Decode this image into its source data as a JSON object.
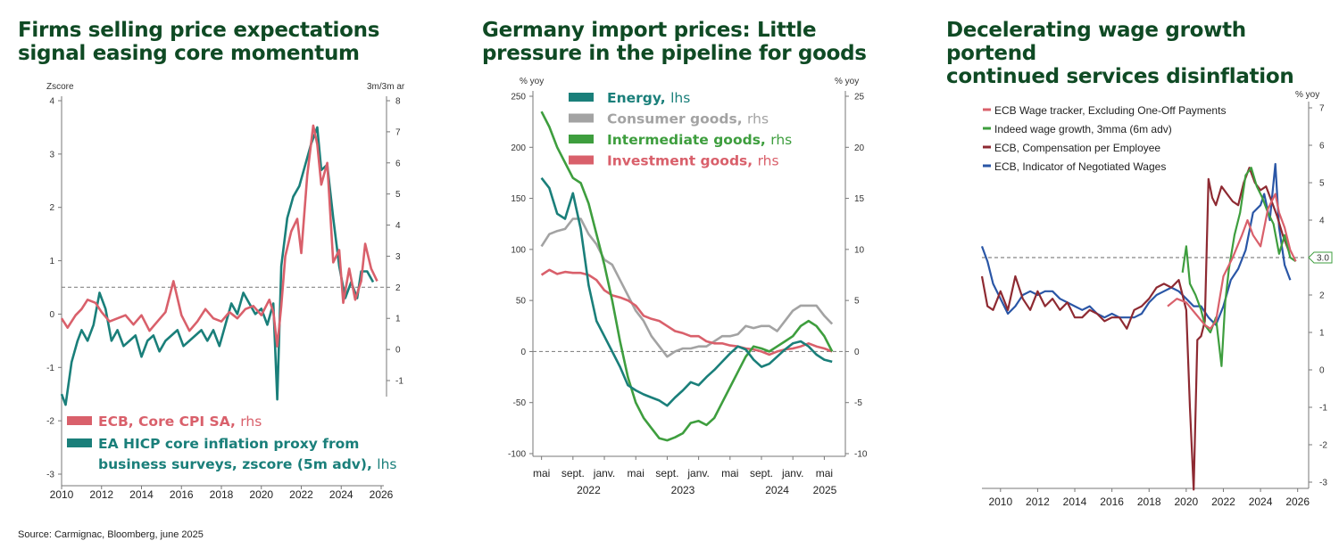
{
  "source": "Source: Carmignac, Bloomberg, june 2025",
  "chart_data": [
    {
      "type": "line",
      "title_lines": [
        "Firms selling price expectations",
        "signal easing core momentum"
      ],
      "ylabel_left": "Zscore",
      "ylabel_right": "3m/3m ar",
      "ylim_left": [
        -3,
        4
      ],
      "ylim_right": [
        -1,
        8
      ],
      "yticks_left": [
        "4",
        "3",
        "2",
        "1",
        "0",
        "-1",
        "-2",
        "-3"
      ],
      "yticks_right": [
        "8",
        "7",
        "6",
        "5",
        "4",
        "3",
        "2",
        "1",
        "0",
        "-1"
      ],
      "xlim": [
        2010,
        2026
      ],
      "xticks": [
        "2010",
        "2012",
        "2014",
        "2016",
        "2018",
        "2020",
        "2022",
        "2024",
        "2026"
      ],
      "reference_line_right": 2,
      "series": [
        {
          "name": "ECB, Core CPI SA,",
          "axis_label": "rhs",
          "color": "#d9606b",
          "axis": "right",
          "x": [
            2010.0,
            2010.3,
            2010.7,
            2011.0,
            2011.3,
            2011.7,
            2012.0,
            2012.4,
            2012.8,
            2013.2,
            2013.6,
            2014.0,
            2014.4,
            2014.8,
            2015.2,
            2015.6,
            2016.0,
            2016.4,
            2016.8,
            2017.2,
            2017.6,
            2018.0,
            2018.4,
            2018.8,
            2019.2,
            2019.6,
            2020.0,
            2020.4,
            2020.6,
            2020.8,
            2021.0,
            2021.2,
            2021.5,
            2021.8,
            2022.0,
            2022.3,
            2022.6,
            2022.8,
            2023.0,
            2023.3,
            2023.6,
            2023.9,
            2024.1,
            2024.4,
            2024.7,
            2025.0,
            2025.2,
            2025.5,
            2025.8
          ],
          "values": [
            1.0,
            0.7,
            1.1,
            1.3,
            1.6,
            1.5,
            1.2,
            0.9,
            1.0,
            1.1,
            0.8,
            1.1,
            0.6,
            0.9,
            1.2,
            2.2,
            1.1,
            0.6,
            0.9,
            1.3,
            1.0,
            0.9,
            1.2,
            1.0,
            1.3,
            1.4,
            1.1,
            1.6,
            1.2,
            0.1,
            1.4,
            3.0,
            3.8,
            4.2,
            3.1,
            5.6,
            7.2,
            6.6,
            5.3,
            6.0,
            2.8,
            3.2,
            1.5,
            2.6,
            1.6,
            2.2,
            3.4,
            2.6,
            2.2
          ]
        },
        {
          "name": "EA HICP core inflation proxy from business surveys, zscore (5m adv),",
          "axis_label": "lhs",
          "color": "#1a7f7a",
          "axis": "left",
          "x": [
            2010.0,
            2010.2,
            2010.5,
            2010.8,
            2011.0,
            2011.3,
            2011.6,
            2011.9,
            2012.2,
            2012.5,
            2012.8,
            2013.1,
            2013.4,
            2013.7,
            2014.0,
            2014.3,
            2014.6,
            2014.9,
            2015.2,
            2015.5,
            2015.8,
            2016.1,
            2016.4,
            2016.7,
            2017.0,
            2017.3,
            2017.6,
            2017.9,
            2018.2,
            2018.5,
            2018.8,
            2019.1,
            2019.4,
            2019.7,
            2020.0,
            2020.3,
            2020.6,
            2020.8,
            2021.0,
            2021.3,
            2021.6,
            2021.9,
            2022.2,
            2022.5,
            2022.8,
            2023.0,
            2023.3,
            2023.6,
            2023.9,
            2024.2,
            2024.5,
            2024.8,
            2025.0,
            2025.3,
            2025.6
          ],
          "values": [
            -1.5,
            -1.7,
            -0.9,
            -0.5,
            -0.3,
            -0.5,
            -0.2,
            0.4,
            0.1,
            -0.5,
            -0.3,
            -0.6,
            -0.5,
            -0.4,
            -0.8,
            -0.5,
            -0.4,
            -0.7,
            -0.5,
            -0.4,
            -0.3,
            -0.6,
            -0.5,
            -0.4,
            -0.3,
            -0.5,
            -0.3,
            -0.6,
            -0.2,
            0.2,
            0.0,
            0.4,
            0.2,
            0.0,
            0.1,
            -0.2,
            0.2,
            -1.6,
            0.9,
            1.8,
            2.2,
            2.4,
            2.8,
            3.2,
            3.5,
            2.7,
            2.8,
            1.8,
            0.9,
            0.3,
            0.6,
            0.3,
            0.8,
            0.8,
            0.6
          ]
        }
      ]
    },
    {
      "type": "line",
      "title_lines": [
        "Germany import prices: Little",
        "pressure in the pipeline for goods"
      ],
      "ylabel_left": "% yoy",
      "ylabel_right": "% yoy",
      "ylim_left": [
        -100,
        250
      ],
      "ylim_right": [
        -10,
        25
      ],
      "yticks_left": [
        "250",
        "200",
        "150",
        "100",
        "50",
        "0",
        "-50",
        "-100"
      ],
      "yticks_right": [
        "25",
        "20",
        "15",
        "10",
        "5",
        "0",
        "-5",
        "-10"
      ],
      "xticks": [
        "mai",
        "sept.",
        "janv.",
        "mai",
        "sept.",
        "janv.",
        "mai",
        "sept.",
        "janv.",
        "mai"
      ],
      "xticks_year": [
        "2022",
        "2023",
        "2024",
        "2025"
      ],
      "x_months": [
        0,
        4,
        8,
        12,
        16,
        20,
        24,
        28,
        32,
        36
      ],
      "reference_line_left": 0,
      "series": [
        {
          "name": "Energy,",
          "axis_label": "lhs",
          "color": "#1a7f7a",
          "axis": "left",
          "months": [
            0,
            1,
            2,
            3,
            4,
            5,
            6,
            7,
            8,
            9,
            10,
            11,
            12,
            13,
            14,
            15,
            16,
            17,
            18,
            19,
            20,
            21,
            22,
            23,
            24,
            25,
            26,
            27,
            28,
            29,
            30,
            31,
            32,
            33,
            34,
            35,
            36,
            37
          ],
          "values": [
            170,
            160,
            135,
            130,
            155,
            120,
            65,
            30,
            15,
            0,
            -15,
            -33,
            -38,
            -42,
            -45,
            -48,
            -53,
            -45,
            -38,
            -30,
            -33,
            -25,
            -18,
            -10,
            -2,
            5,
            2,
            -8,
            -15,
            -12,
            -5,
            2,
            8,
            10,
            5,
            -3,
            -8,
            -10
          ]
        },
        {
          "name": "Consumer goods,",
          "axis_label": "rhs",
          "color": "#a3a3a3",
          "axis": "right",
          "months": [
            0,
            1,
            2,
            3,
            4,
            5,
            6,
            7,
            8,
            9,
            10,
            11,
            12,
            13,
            14,
            15,
            16,
            17,
            18,
            19,
            20,
            21,
            22,
            23,
            24,
            25,
            26,
            27,
            28,
            29,
            30,
            31,
            32,
            33,
            34,
            35,
            36,
            37
          ],
          "values": [
            10.3,
            11.5,
            11.8,
            12.0,
            13.0,
            13.0,
            11.5,
            10.5,
            9.0,
            8.5,
            7.0,
            5.5,
            4.0,
            3.0,
            1.5,
            0.5,
            -0.5,
            0.0,
            0.3,
            0.3,
            0.5,
            0.5,
            1.0,
            1.5,
            1.5,
            1.7,
            2.5,
            2.3,
            2.5,
            2.5,
            2.0,
            3.0,
            4.0,
            4.5,
            4.5,
            4.5,
            3.5,
            2.7
          ]
        },
        {
          "name": "Intermediate goods,",
          "axis_label": "rhs",
          "color": "#3e9e3e",
          "axis": "right",
          "months": [
            0,
            1,
            2,
            3,
            4,
            5,
            6,
            7,
            8,
            9,
            10,
            11,
            12,
            13,
            14,
            15,
            16,
            17,
            18,
            19,
            20,
            21,
            22,
            23,
            24,
            25,
            26,
            27,
            28,
            29,
            30,
            31,
            32,
            33,
            34,
            35,
            36,
            37
          ],
          "values": [
            23.5,
            22.0,
            20.0,
            18.5,
            17.0,
            16.5,
            14.5,
            11.5,
            8.5,
            5.0,
            1.0,
            -2.5,
            -5.0,
            -6.5,
            -7.5,
            -8.5,
            -8.7,
            -8.4,
            -8.0,
            -7.0,
            -6.8,
            -7.2,
            -6.5,
            -5.0,
            -3.5,
            -2.0,
            -0.5,
            0.5,
            0.3,
            0.0,
            0.5,
            1.0,
            1.5,
            2.5,
            3.0,
            2.5,
            1.5,
            0.0
          ]
        },
        {
          "name": "Investment goods,",
          "axis_label": "rhs",
          "color": "#d9606b",
          "axis": "right",
          "months": [
            0,
            1,
            2,
            3,
            4,
            5,
            6,
            7,
            8,
            9,
            10,
            11,
            12,
            13,
            14,
            15,
            16,
            17,
            18,
            19,
            20,
            21,
            22,
            23,
            24,
            25,
            26,
            27,
            28,
            29,
            30,
            31,
            32,
            33,
            34,
            35,
            36,
            37
          ],
          "values": [
            7.5,
            8.0,
            7.6,
            7.8,
            7.7,
            7.7,
            7.5,
            7.0,
            6.0,
            5.5,
            5.3,
            5.0,
            4.5,
            3.5,
            3.2,
            3.0,
            2.5,
            2.0,
            1.8,
            1.5,
            1.5,
            1.0,
            0.8,
            0.8,
            0.6,
            0.5,
            0.3,
            0.2,
            0.0,
            -0.3,
            0.0,
            0.2,
            0.3,
            0.5,
            0.8,
            0.5,
            0.3,
            0.0
          ]
        }
      ]
    },
    {
      "type": "line",
      "title_lines": [
        "Decelerating wage growth portend",
        "continued services disinflation"
      ],
      "ylabel_right": "% yoy",
      "ylim_right": [
        -3,
        7
      ],
      "yticks_right": [
        "7",
        "6",
        "5",
        "4",
        "3",
        "2",
        "1",
        "0",
        "-1",
        "-2",
        "-3"
      ],
      "xlim": [
        2009,
        2026.4
      ],
      "xticks": [
        "2010",
        "2012",
        "2014",
        "2016",
        "2018",
        "2020",
        "2022",
        "2024",
        "2026"
      ],
      "reference_line_right": 3.0,
      "reference_label": "3.0",
      "series": [
        {
          "name": "ECB Wage tracker, Excluding One-Off Payments",
          "color": "#d9606b",
          "x": [
            2019.0,
            2019.5,
            2020.0,
            2020.5,
            2021.0,
            2021.3,
            2021.6,
            2022.0,
            2022.5,
            2023.0,
            2023.3,
            2023.6,
            2024.0,
            2024.4,
            2024.8,
            2025.0,
            2025.3,
            2025.6,
            2025.9
          ],
          "values": [
            1.7,
            1.9,
            1.8,
            1.5,
            1.2,
            1.1,
            1.3,
            2.5,
            3.0,
            3.6,
            4.0,
            3.6,
            3.3,
            4.3,
            4.7,
            4.2,
            3.8,
            3.2,
            2.9
          ]
        },
        {
          "name": "Indeed wage growth, 3mma (6m adv)",
          "color": "#3e9e3e",
          "x": [
            2019.8,
            2020.0,
            2020.2,
            2020.5,
            2020.8,
            2021.0,
            2021.3,
            2021.6,
            2021.9,
            2022.1,
            2022.3,
            2022.6,
            2022.9,
            2023.2,
            2023.5,
            2023.8,
            2024.1,
            2024.4,
            2024.7,
            2025.0,
            2025.3,
            2025.6,
            2025.9
          ],
          "values": [
            2.6,
            3.3,
            2.3,
            2.0,
            1.6,
            1.2,
            1.0,
            1.4,
            0.1,
            1.8,
            2.7,
            3.6,
            4.2,
            5.2,
            5.4,
            4.9,
            4.6,
            4.2,
            3.9,
            3.1,
            3.6,
            3.0,
            2.9
          ]
        },
        {
          "name": "ECB, Compensation per Employee",
          "color": "#8e2a32",
          "x": [
            2009.0,
            2009.3,
            2009.6,
            2010.0,
            2010.4,
            2010.8,
            2011.2,
            2011.6,
            2012.0,
            2012.4,
            2012.8,
            2013.2,
            2013.6,
            2014.0,
            2014.4,
            2014.8,
            2015.2,
            2015.6,
            2016.0,
            2016.4,
            2016.8,
            2017.2,
            2017.6,
            2018.0,
            2018.4,
            2018.8,
            2019.2,
            2019.6,
            2020.0,
            2020.2,
            2020.4,
            2020.6,
            2020.8,
            2021.0,
            2021.2,
            2021.4,
            2021.6,
            2021.9,
            2022.2,
            2022.5,
            2022.8,
            2023.1,
            2023.4,
            2023.7,
            2024.0,
            2024.3,
            2024.6,
            2024.9,
            2025.2,
            2025.5
          ],
          "values": [
            2.5,
            1.7,
            1.6,
            2.1,
            1.6,
            2.5,
            1.9,
            1.6,
            2.1,
            1.7,
            1.9,
            1.6,
            1.8,
            1.4,
            1.4,
            1.6,
            1.5,
            1.3,
            1.4,
            1.4,
            1.1,
            1.6,
            1.7,
            1.9,
            2.2,
            2.3,
            2.2,
            2.4,
            1.6,
            -1.0,
            -3.2,
            0.8,
            0.9,
            1.3,
            5.1,
            4.6,
            4.4,
            4.9,
            4.7,
            4.5,
            4.4,
            5.0,
            5.4,
            5.0,
            4.8,
            4.9,
            4.5,
            4.1,
            3.6,
            3.2
          ]
        },
        {
          "name": "ECB, Indicator of Negotiated Wages",
          "color": "#2a56a6",
          "x": [
            2009.0,
            2009.3,
            2009.6,
            2010.0,
            2010.4,
            2010.8,
            2011.2,
            2011.6,
            2012.0,
            2012.4,
            2012.8,
            2013.2,
            2013.6,
            2014.0,
            2014.4,
            2014.8,
            2015.2,
            2015.6,
            2016.0,
            2016.4,
            2016.8,
            2017.2,
            2017.6,
            2018.0,
            2018.4,
            2018.8,
            2019.2,
            2019.6,
            2020.0,
            2020.4,
            2020.8,
            2021.2,
            2021.6,
            2022.0,
            2022.4,
            2022.8,
            2023.2,
            2023.6,
            2024.0,
            2024.2,
            2024.5,
            2024.8,
            2025.0,
            2025.3,
            2025.6
          ],
          "values": [
            3.3,
            2.9,
            2.3,
            1.9,
            1.5,
            1.7,
            2.0,
            2.1,
            2.0,
            2.1,
            2.1,
            1.9,
            1.8,
            1.7,
            1.6,
            1.7,
            1.5,
            1.4,
            1.5,
            1.4,
            1.4,
            1.4,
            1.5,
            1.8,
            2.0,
            2.1,
            2.2,
            2.1,
            1.9,
            1.7,
            1.7,
            1.4,
            1.2,
            1.7,
            2.4,
            2.7,
            3.2,
            4.2,
            4.4,
            4.7,
            4.0,
            5.5,
            3.8,
            2.8,
            2.4
          ]
        }
      ]
    }
  ]
}
